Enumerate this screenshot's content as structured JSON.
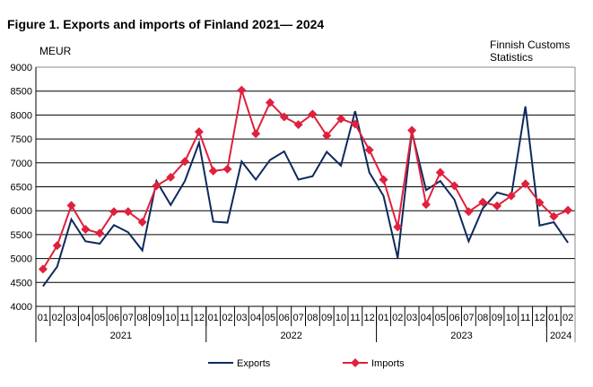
{
  "chart_data": {
    "type": "line",
    "title": "Figure 1. Exports and imports of Finland 2021— 2024",
    "ylabel": "MEUR",
    "source": [
      "Finnish Customs",
      "Statistics"
    ],
    "ylim": [
      4000,
      9000
    ],
    "yticks": [
      4000,
      4500,
      5000,
      5500,
      6000,
      6500,
      7000,
      7500,
      8000,
      8500,
      9000
    ],
    "grid": true,
    "legend": "bottom",
    "categories": [
      "01",
      "02",
      "03",
      "04",
      "05",
      "06",
      "07",
      "08",
      "09",
      "10",
      "11",
      "12",
      "01",
      "02",
      "03",
      "04",
      "05",
      "06",
      "07",
      "08",
      "09",
      "10",
      "11",
      "12",
      "01",
      "02",
      "03",
      "04",
      "05",
      "06",
      "07",
      "08",
      "09",
      "10",
      "11",
      "12",
      "01",
      "02"
    ],
    "years": [
      {
        "label": "2021",
        "months": 12
      },
      {
        "label": "2022",
        "months": 12
      },
      {
        "label": "2023",
        "months": 12
      },
      {
        "label": "2024",
        "months": 2
      }
    ],
    "series": [
      {
        "name": "Exports",
        "color": "#0d2a5c",
        "marker": "none",
        "values": [
          4420,
          4830,
          5820,
          5360,
          5310,
          5700,
          5550,
          5170,
          6620,
          6120,
          6620,
          7420,
          5770,
          5750,
          7030,
          6650,
          7060,
          7240,
          6650,
          6720,
          7230,
          6940,
          8080,
          6800,
          6310,
          5010,
          7650,
          6430,
          6620,
          6230,
          5360,
          6050,
          6380,
          6300,
          8180,
          5690,
          5760,
          5330
        ]
      },
      {
        "name": "Imports",
        "color": "#e0203c",
        "marker": "diamond",
        "values": [
          4780,
          5270,
          6110,
          5610,
          5530,
          5980,
          5980,
          5760,
          6520,
          6700,
          7030,
          7650,
          6830,
          6870,
          8520,
          7610,
          8260,
          7960,
          7800,
          8020,
          7570,
          7920,
          7810,
          7270,
          6650,
          5660,
          7680,
          6130,
          6800,
          6520,
          5980,
          6180,
          6100,
          6310,
          6560,
          6170,
          5880,
          6010
        ]
      }
    ]
  }
}
